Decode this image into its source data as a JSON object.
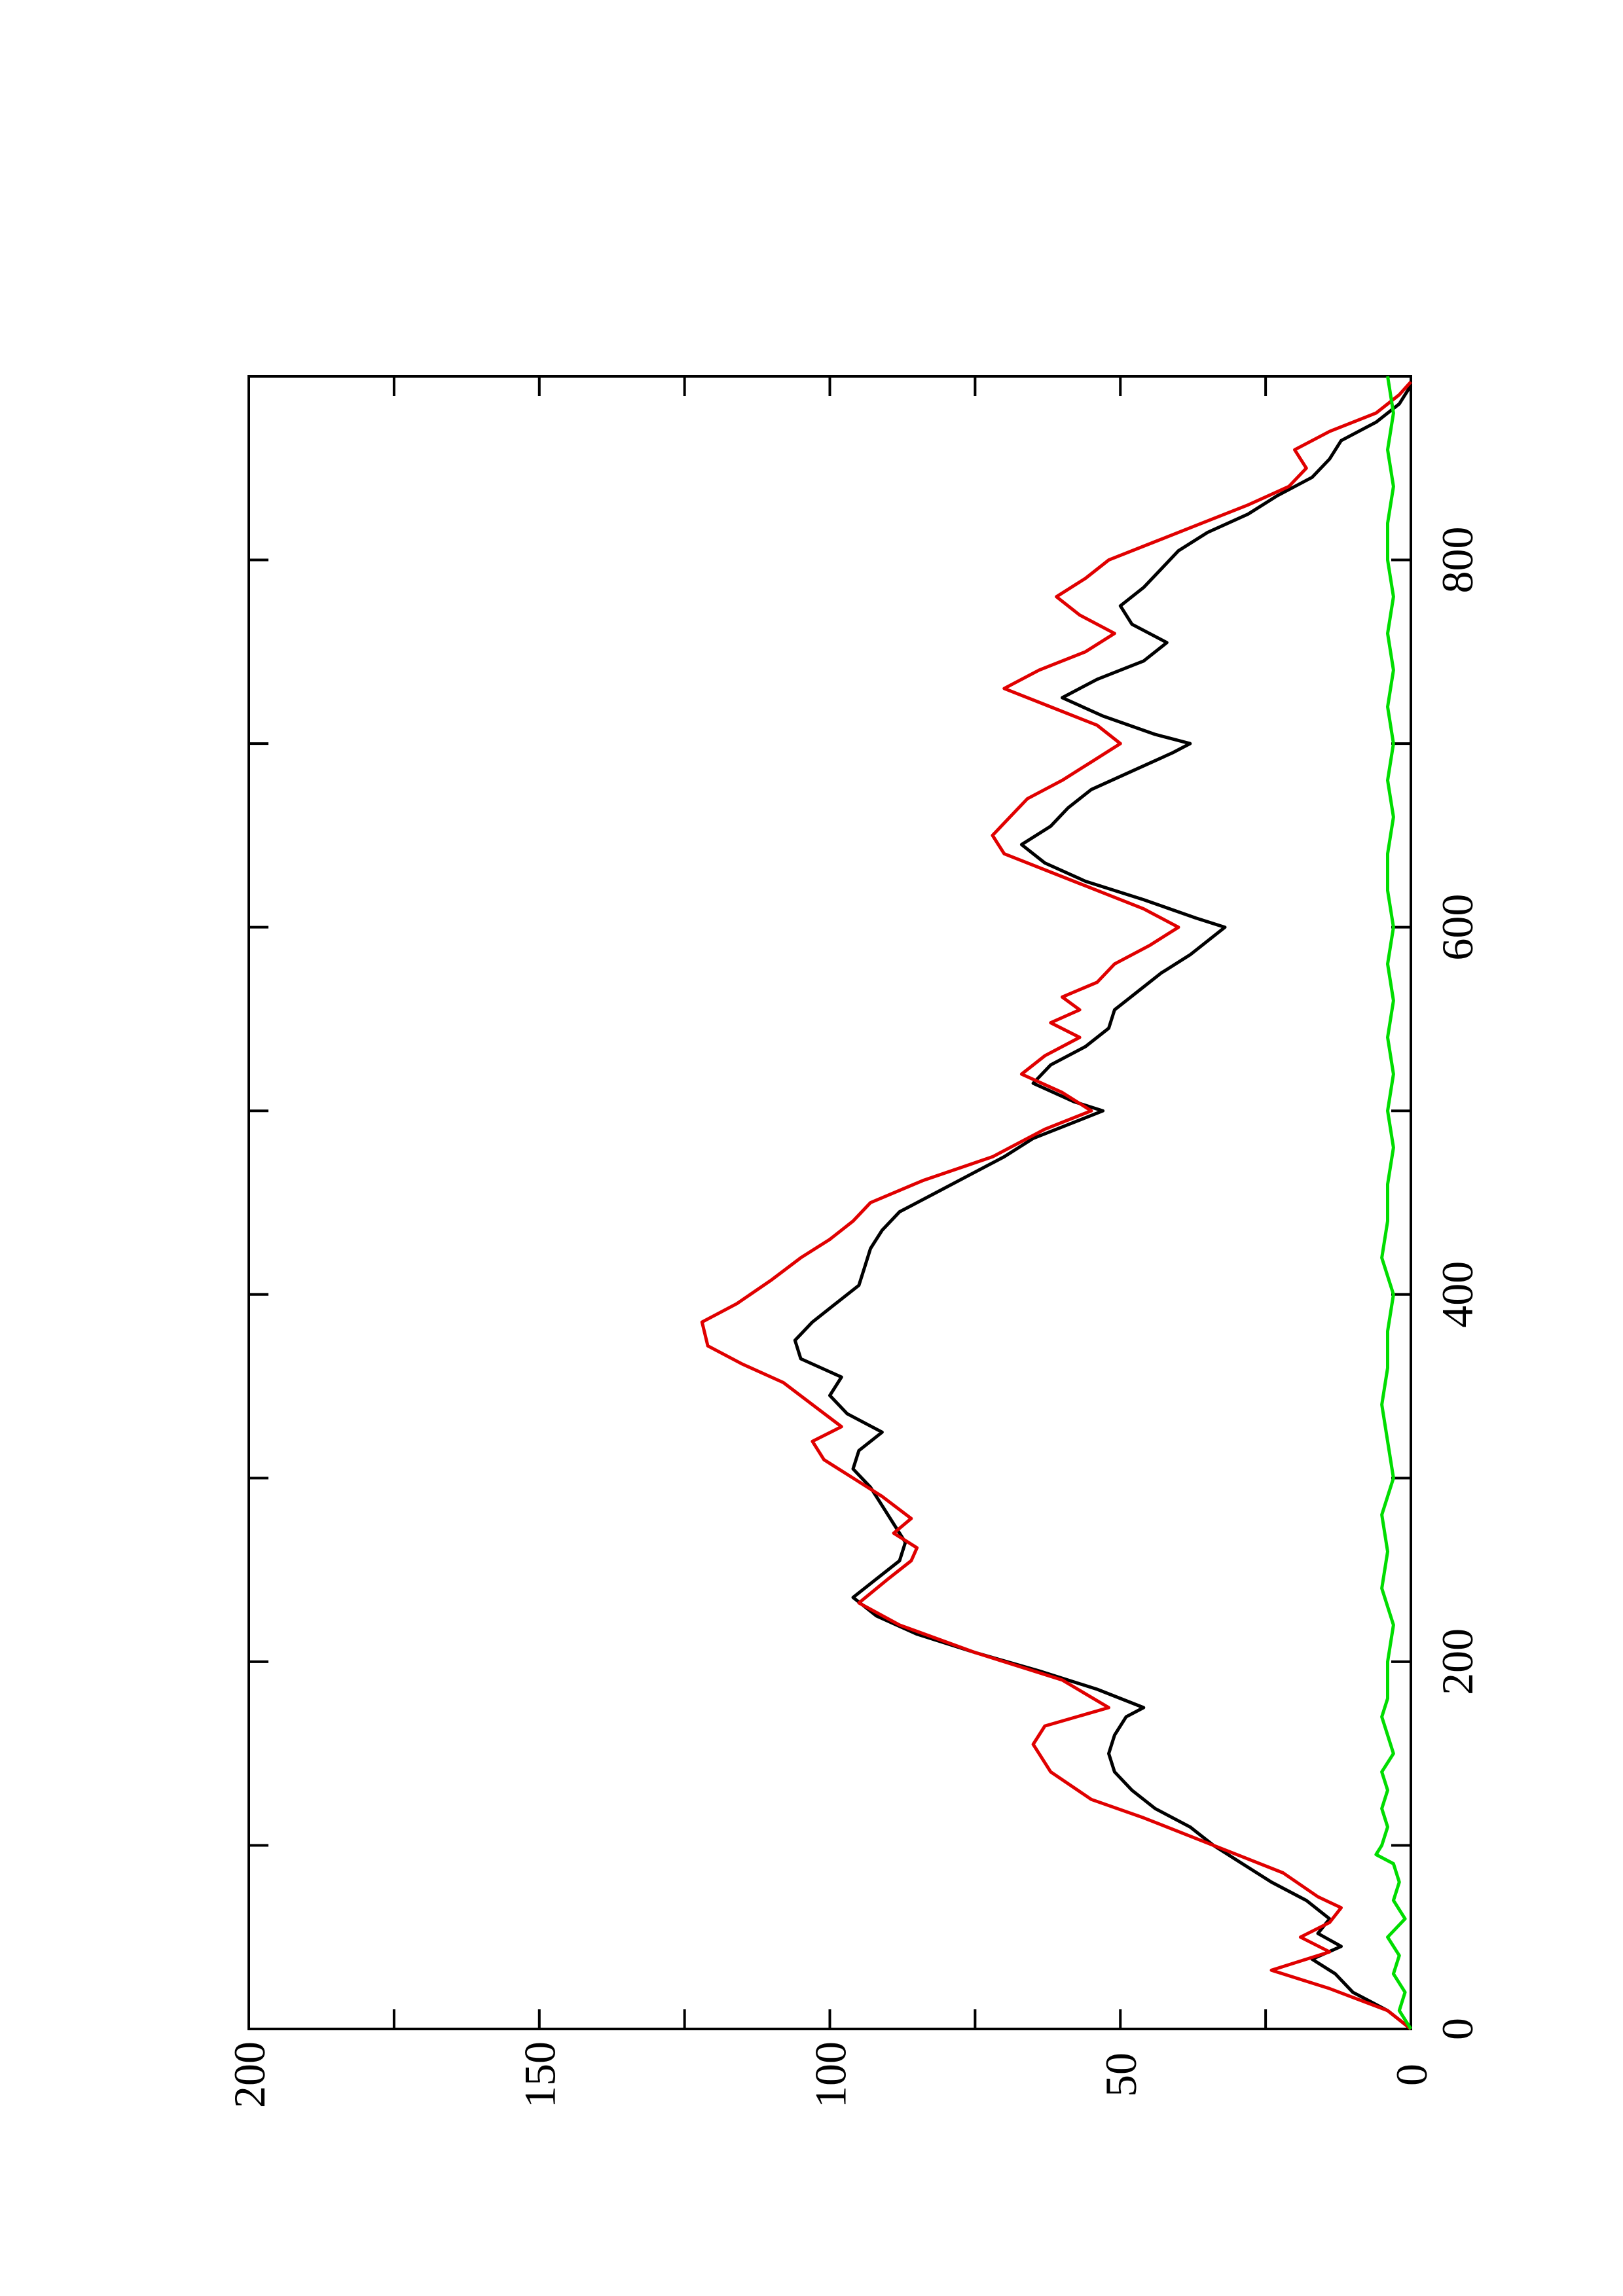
{
  "chart_data": {
    "type": "line",
    "orientation": "rotated-90-ccw",
    "title": "",
    "xlabel": "",
    "ylabel": "",
    "xlim": [
      0,
      900
    ],
    "ylim": [
      0,
      200
    ],
    "x_ticks": [
      0,
      200,
      400,
      600,
      800
    ],
    "x_tick_labels": [
      "0",
      "200",
      "400",
      "600",
      "800"
    ],
    "x_minor_ticks": [
      100,
      300,
      500,
      700
    ],
    "y_ticks": [
      0,
      50,
      100,
      150,
      200
    ],
    "y_tick_labels": [
      "0",
      "50",
      "100",
      "150",
      "200"
    ],
    "y_minor_ticks": [
      25,
      75,
      125,
      175
    ],
    "grid": false,
    "legend": "none",
    "series": [
      {
        "color": "#000000",
        "x": [
          0,
          10,
          20,
          30,
          38,
          45,
          52,
          60,
          70,
          80,
          90,
          100,
          110,
          120,
          130,
          140,
          150,
          160,
          170,
          175,
          185,
          195,
          205,
          215,
          225,
          235,
          245,
          255,
          265,
          275,
          285,
          295,
          305,
          315,
          325,
          335,
          345,
          355,
          365,
          375,
          385,
          395,
          405,
          415,
          425,
          435,
          445,
          455,
          465,
          475,
          485,
          495,
          500,
          505,
          515,
          525,
          535,
          545,
          555,
          565,
          575,
          585,
          595,
          600,
          605,
          615,
          625,
          635,
          645,
          655,
          665,
          675,
          685,
          695,
          700,
          705,
          715,
          725,
          735,
          745,
          755,
          765,
          775,
          785,
          795,
          805,
          815,
          825,
          835,
          845,
          855,
          865,
          875,
          885,
          895
        ],
        "y": [
          0,
          4,
          10,
          13,
          17,
          12,
          16,
          14,
          18,
          24,
          29,
          34,
          38,
          44,
          48,
          51,
          52,
          51,
          49,
          46,
          54,
          64,
          75,
          85,
          92,
          96,
          92,
          88,
          87,
          89,
          91,
          93,
          96,
          95,
          91,
          97,
          100,
          98,
          105,
          106,
          103,
          99,
          95,
          94,
          93,
          91,
          88,
          82,
          76,
          70,
          65,
          57,
          53,
          58,
          65,
          62,
          56,
          52,
          51,
          47,
          43,
          38,
          34,
          32,
          37,
          46,
          56,
          63,
          67,
          62,
          59,
          55,
          48,
          41,
          38,
          44,
          53,
          60,
          54,
          46,
          42,
          48,
          50,
          46,
          43,
          40,
          35,
          28,
          23,
          17,
          14,
          12,
          6,
          2,
          0
        ]
      },
      {
        "color": "#e00000",
        "x": [
          0,
          10,
          22,
          32,
          42,
          50,
          58,
          66,
          72,
          85,
          100,
          115,
          125,
          140,
          155,
          165,
          175,
          190,
          205,
          220,
          232,
          245,
          255,
          262,
          270,
          278,
          290,
          300,
          310,
          320,
          328,
          340,
          352,
          362,
          372,
          385,
          395,
          408,
          420,
          430,
          440,
          450,
          462,
          475,
          490,
          500,
          510,
          520,
          530,
          540,
          548,
          555,
          562,
          570,
          580,
          590,
          600,
          610,
          625,
          640,
          650,
          660,
          670,
          680,
          690,
          700,
          710,
          720,
          730,
          740,
          750,
          760,
          770,
          780,
          790,
          800,
          810,
          820,
          830,
          840,
          850,
          860,
          870,
          880,
          890,
          897
        ],
        "y": [
          0,
          4,
          14,
          24,
          14,
          19,
          14,
          12,
          16,
          22,
          34,
          46,
          55,
          62,
          65,
          63,
          52,
          60,
          75,
          88,
          95,
          90,
          86,
          85,
          89,
          86,
          91,
          96,
          101,
          103,
          98,
          103,
          108,
          115,
          121,
          122,
          116,
          110,
          105,
          100,
          96,
          93,
          84,
          72,
          63,
          55,
          60,
          67,
          63,
          57,
          62,
          57,
          60,
          54,
          51,
          45,
          40,
          46,
          58,
          70,
          72,
          69,
          66,
          60,
          55,
          50,
          54,
          62,
          70,
          64,
          56,
          51,
          57,
          61,
          56,
          52,
          44,
          36,
          28,
          21,
          18,
          20,
          14,
          6,
          2,
          0
        ]
      },
      {
        "color": "#00dd00",
        "x": [
          0,
          10,
          20,
          30,
          40,
          50,
          60,
          70,
          80,
          90,
          95,
          100,
          110,
          120,
          130,
          140,
          150,
          160,
          170,
          180,
          200,
          220,
          240,
          260,
          280,
          300,
          320,
          340,
          360,
          380,
          400,
          420,
          440,
          460,
          480,
          500,
          520,
          540,
          560,
          580,
          600,
          620,
          640,
          660,
          680,
          700,
          720,
          740,
          760,
          780,
          800,
          820,
          840,
          860,
          880,
          900
        ],
        "y": [
          0,
          2,
          1,
          3,
          2,
          4,
          1,
          3,
          2,
          3,
          6,
          5,
          4,
          5,
          4,
          5,
          3,
          4,
          5,
          4,
          4,
          3,
          5,
          4,
          5,
          3,
          4,
          5,
          4,
          4,
          3,
          5,
          4,
          4,
          3,
          4,
          3,
          4,
          3,
          4,
          3,
          4,
          4,
          3,
          4,
          3,
          4,
          3,
          4,
          3,
          4,
          4,
          3,
          4,
          3,
          4
        ]
      }
    ]
  }
}
